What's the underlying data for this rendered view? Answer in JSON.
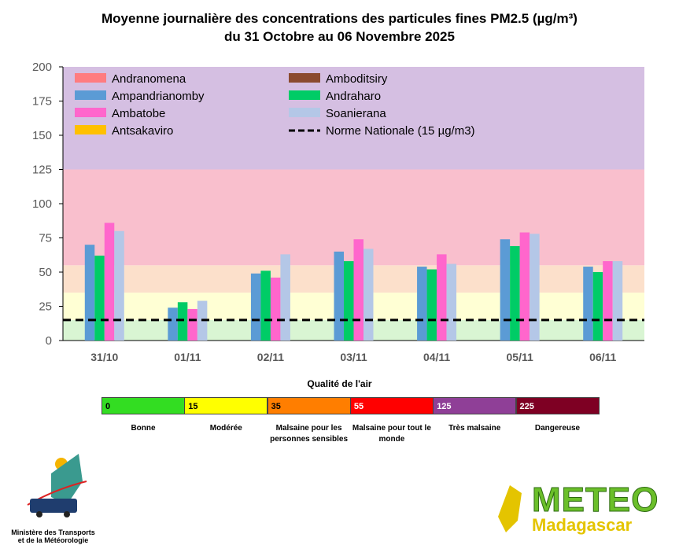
{
  "chart_data": {
    "type": "bar",
    "title": "Moyenne journalière des concentrations des particules fines PM2.5 (µg/m³)",
    "subtitle": "du 31 Octobre au 06 Novembre 2025",
    "categories": [
      "31/10",
      "01/11",
      "02/11",
      "03/11",
      "04/11",
      "05/11",
      "06/11"
    ],
    "ylim": [
      0,
      200
    ],
    "yticks": [
      0,
      25,
      50,
      75,
      100,
      125,
      150,
      175,
      200
    ],
    "legend_placement": "top",
    "series": [
      {
        "name": "Andranomena",
        "color": "#ff7c80",
        "values": [
          null,
          null,
          null,
          null,
          null,
          null,
          null
        ]
      },
      {
        "name": "Amboditsiry",
        "color": "#8b4a2e",
        "values": [
          null,
          null,
          null,
          null,
          null,
          null,
          null
        ]
      },
      {
        "name": "Ampandrianomby",
        "color": "#5b9bd5",
        "values": [
          70,
          24,
          49,
          65,
          54,
          74,
          54
        ]
      },
      {
        "name": "Andraharo",
        "color": "#00cc66",
        "values": [
          62,
          28,
          51,
          58,
          52,
          69,
          50
        ]
      },
      {
        "name": "Ambatobe",
        "color": "#ff66cc",
        "values": [
          86,
          23,
          46,
          74,
          63,
          79,
          58
        ]
      },
      {
        "name": "Soanierana",
        "color": "#b4c7e7",
        "values": [
          80,
          29,
          63,
          67,
          56,
          78,
          58
        ]
      },
      {
        "name": "Antsakaviro",
        "color": "#ffc000",
        "values": [
          null,
          null,
          null,
          null,
          null,
          null,
          null
        ]
      }
    ],
    "reference_line": {
      "name": "Norme Nationale (15 µg/m3)",
      "value": 15,
      "color": "#000000"
    },
    "background_bands": [
      {
        "from": 0,
        "to": 15,
        "color": "#d9f5d3"
      },
      {
        "from": 15,
        "to": 35,
        "color": "#ffffd4"
      },
      {
        "from": 35,
        "to": 55,
        "color": "#fce0cb"
      },
      {
        "from": 55,
        "to": 125,
        "color": "#f9bfcd"
      },
      {
        "from": 125,
        "to": 200,
        "color": "#d5bfe2"
      }
    ]
  },
  "air_quality": {
    "title": "Qualité de l'air",
    "levels": [
      {
        "value": "0",
        "label": "Bonne",
        "color": "#33dd22"
      },
      {
        "value": "15",
        "label": "Modérée",
        "color": "#ffff00"
      },
      {
        "value": "35",
        "label": "Malsaine pour les personnes sensibles",
        "color": "#ff7e00"
      },
      {
        "value": "55",
        "label": "Malsaine pour tout le monde",
        "color": "#ff0000"
      },
      {
        "value": "125",
        "label": "Très malsaine",
        "color": "#8f3f97"
      },
      {
        "value": "225",
        "label": "Dangereuse",
        "color": "#7e0023"
      }
    ]
  },
  "logos": {
    "ministry": "Ministère des Transports et de la Météorologie",
    "meteo": "METEO",
    "meteo_sub": "Madagascar"
  }
}
